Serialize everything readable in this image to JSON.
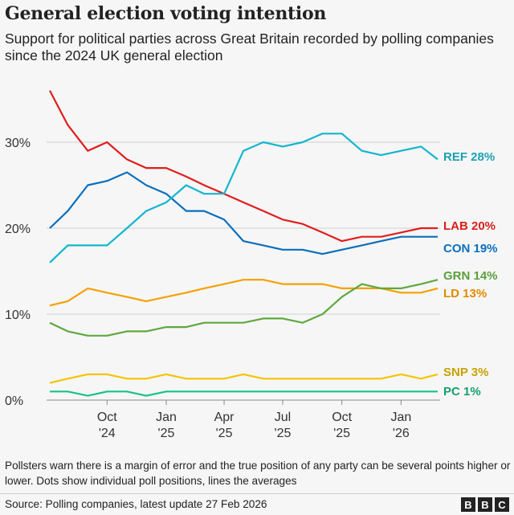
{
  "title": "General election voting intention",
  "subtitle": "Support for political parties across Great Britain recorded by polling companies since the 2024 UK general election",
  "note": "Pollsters warn there is a margin of error and the true position of any party can be several points higher or lower. Dots show individual poll positions, lines the averages",
  "source": "Source: Polling companies, latest update 27 Feb 2026",
  "logo": [
    "B",
    "B",
    "C"
  ],
  "chart_data": {
    "type": "line",
    "title": "General election voting intention",
    "ylim": [
      0,
      37
    ],
    "yticks": [
      {
        "v": 0,
        "label": "0%"
      },
      {
        "v": 10,
        "label": "10%"
      },
      {
        "v": 20,
        "label": "20%"
      },
      {
        "v": 30,
        "label": "30%"
      }
    ],
    "xlim": [
      "2024-07-04",
      "2026-02-27"
    ],
    "xticks": [
      {
        "date": "2024-10-01",
        "label": [
          "Oct",
          "'24"
        ]
      },
      {
        "date": "2025-01-01",
        "label": [
          "Jan",
          "'25"
        ]
      },
      {
        "date": "2025-04-01",
        "label": [
          "Apr",
          "'25"
        ]
      },
      {
        "date": "2025-07-01",
        "label": [
          "Jul",
          "'25"
        ]
      },
      {
        "date": "2025-10-01",
        "label": [
          "Oct",
          "'25"
        ]
      },
      {
        "date": "2026-01-01",
        "label": [
          "Jan",
          "'26"
        ]
      }
    ],
    "grid": true,
    "x": [
      "2024-07-04",
      "2024-08-01",
      "2024-09-01",
      "2024-10-01",
      "2024-11-01",
      "2024-12-01",
      "2025-01-01",
      "2025-02-01",
      "2025-03-01",
      "2025-04-01",
      "2025-05-01",
      "2025-06-01",
      "2025-07-01",
      "2025-08-01",
      "2025-09-01",
      "2025-10-01",
      "2025-11-01",
      "2025-12-01",
      "2026-01-01",
      "2026-02-01",
      "2026-02-27"
    ],
    "series": [
      {
        "name": "REF",
        "label": "REF 28%",
        "color": "#12b6cf",
        "label_color": "#1aa0b4",
        "values": [
          16,
          18,
          18,
          18,
          20,
          22,
          23,
          25,
          24,
          24,
          29,
          30,
          29.5,
          30,
          31,
          31,
          29,
          28.5,
          29,
          29.5,
          28
        ]
      },
      {
        "name": "LAB",
        "label": "LAB 20%",
        "color": "#e11d1d",
        "label_color": "#d8201b",
        "values": [
          36,
          32,
          29,
          30,
          28,
          27,
          27,
          26,
          25,
          24,
          23,
          22,
          21,
          20.5,
          19.5,
          18.5,
          19,
          19,
          19.5,
          20,
          20
        ]
      },
      {
        "name": "CON",
        "label": "CON 19%",
        "color": "#0a6ebd",
        "label_color": "#0a6ebd",
        "values": [
          20,
          22,
          25,
          25.5,
          26.5,
          25,
          24,
          22,
          22,
          21,
          18.5,
          18,
          17.5,
          17.5,
          17,
          17.5,
          18,
          18.5,
          19,
          19,
          19
        ]
      },
      {
        "name": "GRN",
        "label": "GRN 14%",
        "color": "#5ea83e",
        "label_color": "#5a9e3c",
        "values": [
          9,
          8,
          7.5,
          7.5,
          8,
          8,
          8.5,
          8.5,
          9,
          9,
          9,
          9.5,
          9.5,
          9,
          10,
          12,
          13.5,
          13,
          13,
          13.5,
          14
        ]
      },
      {
        "name": "LD",
        "label": "LD 13%",
        "color": "#f5a000",
        "label_color": "#e08a00",
        "values": [
          11,
          11.5,
          13,
          12.5,
          12,
          11.5,
          12,
          12.5,
          13,
          13.5,
          14,
          14,
          13.5,
          13.5,
          13.5,
          13,
          13,
          13,
          12.5,
          12.5,
          13
        ]
      },
      {
        "name": "SNP",
        "label": "SNP 3%",
        "color": "#f5c400",
        "label_color": "#c9a000",
        "values": [
          2,
          2.5,
          3,
          3,
          2.5,
          2.5,
          3,
          2.5,
          2.5,
          2.5,
          3,
          2.5,
          2.5,
          2.5,
          2.5,
          2.5,
          2.5,
          2.5,
          3,
          2.5,
          3
        ]
      },
      {
        "name": "PC",
        "label": "PC 1%",
        "color": "#16c28a",
        "label_color": "#139e70",
        "values": [
          1,
          1,
          0.5,
          1,
          1,
          0.5,
          1,
          1,
          1,
          1,
          1,
          1,
          1,
          1,
          1,
          1,
          1,
          1,
          1,
          1,
          1
        ]
      }
    ]
  }
}
